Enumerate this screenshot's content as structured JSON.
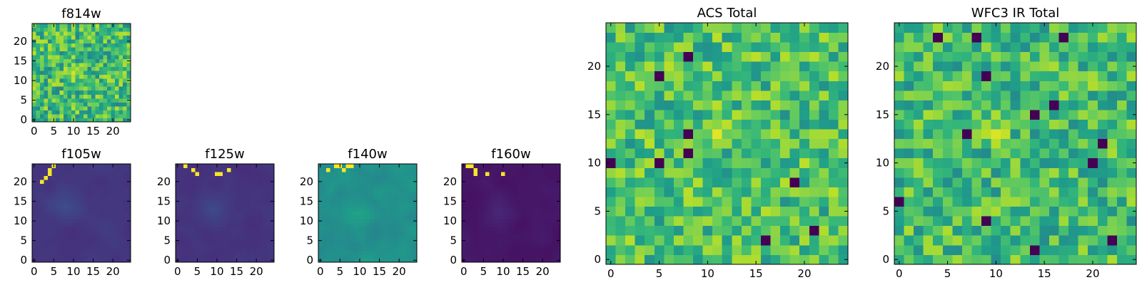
{
  "figure": {
    "description_colormap": "viridis"
  },
  "colors": {
    "cmap": [
      "#440154",
      "#482878",
      "#3e4989",
      "#31688e",
      "#26828e",
      "#1f9e89",
      "#35b779",
      "#6ece58",
      "#b5de2b",
      "#fde725"
    ]
  },
  "chart_data": [
    {
      "type": "heatmap",
      "title": "f814w",
      "grid": [
        25,
        25
      ],
      "xlim": [
        0,
        24
      ],
      "ylim": [
        0,
        24
      ],
      "xticks": [
        0,
        5,
        10,
        15,
        20
      ],
      "yticks": [
        0,
        5,
        10,
        15,
        20
      ],
      "xtick_labels": [
        "0",
        "5",
        "10",
        "15",
        "20"
      ],
      "ytick_labels": [
        "0",
        "5",
        "10",
        "15",
        "20"
      ],
      "pattern": "noise",
      "base": 0.68,
      "spread": 0.22,
      "seed": 11,
      "features": [
        {
          "x": 10,
          "y": 12,
          "value": 0.97,
          "radius": 2.5
        }
      ]
    },
    {
      "type": "heatmap",
      "title": "f105w",
      "grid": [
        25,
        25
      ],
      "xlim": [
        0,
        24
      ],
      "ylim": [
        0,
        24
      ],
      "xticks": [
        0,
        5,
        10,
        15,
        20
      ],
      "yticks": [
        0,
        5,
        10,
        15,
        20
      ],
      "xtick_labels": [
        "0",
        "5",
        "10",
        "15",
        "20"
      ],
      "ytick_labels": [
        "0",
        "5",
        "10",
        "15",
        "20"
      ],
      "pattern": "smooth",
      "base": 0.16,
      "spread": 0.05,
      "seed": 21,
      "features": [
        {
          "x": 8,
          "y": 14,
          "value": 0.28,
          "radius": 6
        }
      ],
      "hot_pixels": [
        [
          4,
          23
        ],
        [
          4,
          22
        ],
        [
          3,
          21
        ],
        [
          2,
          20
        ],
        [
          5,
          24
        ]
      ]
    },
    {
      "type": "heatmap",
      "title": "f125w",
      "grid": [
        25,
        25
      ],
      "xlim": [
        0,
        24
      ],
      "ylim": [
        0,
        24
      ],
      "xticks": [
        0,
        5,
        10,
        15,
        20
      ],
      "yticks": [
        0,
        5,
        10,
        15,
        20
      ],
      "xtick_labels": [
        "0",
        "5",
        "10",
        "15",
        "20"
      ],
      "ytick_labels": [
        "0",
        "5",
        "10",
        "15",
        "20"
      ],
      "pattern": "smooth",
      "base": 0.15,
      "spread": 0.05,
      "seed": 31,
      "features": [
        {
          "x": 9,
          "y": 13,
          "value": 0.27,
          "radius": 6
        }
      ],
      "hot_pixels": [
        [
          2,
          24
        ],
        [
          4,
          23
        ],
        [
          5,
          22
        ],
        [
          10,
          22
        ],
        [
          11,
          22
        ],
        [
          13,
          23
        ]
      ]
    },
    {
      "type": "heatmap",
      "title": "f140w",
      "grid": [
        25,
        25
      ],
      "xlim": [
        0,
        24
      ],
      "ylim": [
        0,
        24
      ],
      "xticks": [
        0,
        5,
        10,
        15,
        20
      ],
      "yticks": [
        0,
        5,
        10,
        15,
        20
      ],
      "xtick_labels": [
        "0",
        "5",
        "10",
        "15",
        "20"
      ],
      "ytick_labels": [
        "0",
        "5",
        "10",
        "15",
        "20"
      ],
      "pattern": "smooth",
      "base": 0.5,
      "spread": 0.13,
      "seed": 41,
      "features": [
        {
          "x": 10,
          "y": 12,
          "value": 0.62,
          "radius": 5
        }
      ],
      "hot_pixels": [
        [
          4,
          24
        ],
        [
          5,
          24
        ],
        [
          6,
          23
        ],
        [
          7,
          24
        ],
        [
          8,
          24
        ],
        [
          2,
          23
        ]
      ]
    },
    {
      "type": "heatmap",
      "title": "f160w",
      "grid": [
        25,
        25
      ],
      "xlim": [
        0,
        24
      ],
      "ylim": [
        0,
        24
      ],
      "xticks": [
        0,
        5,
        10,
        15,
        20
      ],
      "yticks": [
        0,
        5,
        10,
        15,
        20
      ],
      "xtick_labels": [
        "0",
        "5",
        "10",
        "15",
        "20"
      ],
      "ytick_labels": [
        "0",
        "5",
        "10",
        "15",
        "20"
      ],
      "pattern": "smooth",
      "base": 0.06,
      "spread": 0.04,
      "seed": 51,
      "features": [
        {
          "x": 9,
          "y": 12,
          "value": 0.14,
          "radius": 6
        }
      ],
      "hot_pixels": [
        [
          2,
          24
        ],
        [
          3,
          23
        ],
        [
          3,
          22
        ],
        [
          1,
          24
        ],
        [
          6,
          22
        ],
        [
          10,
          22
        ]
      ]
    },
    {
      "type": "heatmap",
      "title": "ACS Total",
      "grid": [
        25,
        25
      ],
      "xlim": [
        0,
        24
      ],
      "ylim": [
        0,
        24
      ],
      "xticks": [
        0,
        5,
        10,
        15,
        20
      ],
      "yticks": [
        0,
        5,
        10,
        15,
        20
      ],
      "xtick_labels": [
        "0",
        "5",
        "10",
        "15",
        "20"
      ],
      "ytick_labels": [
        "0",
        "5",
        "10",
        "15",
        "20"
      ],
      "pattern": "noise",
      "base": 0.7,
      "spread": 0.2,
      "seed": 61,
      "features": [
        {
          "x": 11,
          "y": 13,
          "value": 0.97,
          "radius": 2.2
        }
      ],
      "dark_pixels": [
        [
          8,
          21
        ],
        [
          5,
          19
        ],
        [
          0,
          10
        ],
        [
          5,
          10
        ],
        [
          8,
          13
        ],
        [
          8,
          11
        ],
        [
          21,
          3
        ],
        [
          16,
          2
        ],
        [
          19,
          8
        ]
      ]
    },
    {
      "type": "heatmap",
      "title": "WFC3 IR Total",
      "grid": [
        25,
        25
      ],
      "xlim": [
        0,
        24
      ],
      "ylim": [
        0,
        24
      ],
      "xticks": [
        0,
        5,
        10,
        15,
        20
      ],
      "yticks": [
        0,
        5,
        10,
        15,
        20
      ],
      "xtick_labels": [
        "0",
        "5",
        "10",
        "15",
        "20"
      ],
      "ytick_labels": [
        "0",
        "5",
        "10",
        "15",
        "20"
      ],
      "pattern": "noise",
      "base": 0.68,
      "spread": 0.2,
      "seed": 71,
      "features": [
        {
          "x": 10,
          "y": 13,
          "value": 0.97,
          "radius": 2
        }
      ],
      "dark_pixels": [
        [
          4,
          23
        ],
        [
          8,
          23
        ],
        [
          17,
          23
        ],
        [
          9,
          19
        ],
        [
          16,
          16
        ],
        [
          14,
          15
        ],
        [
          7,
          13
        ],
        [
          20,
          10
        ],
        [
          0,
          6
        ],
        [
          9,
          4
        ],
        [
          14,
          1
        ],
        [
          22,
          2
        ],
        [
          21,
          12
        ]
      ]
    }
  ]
}
